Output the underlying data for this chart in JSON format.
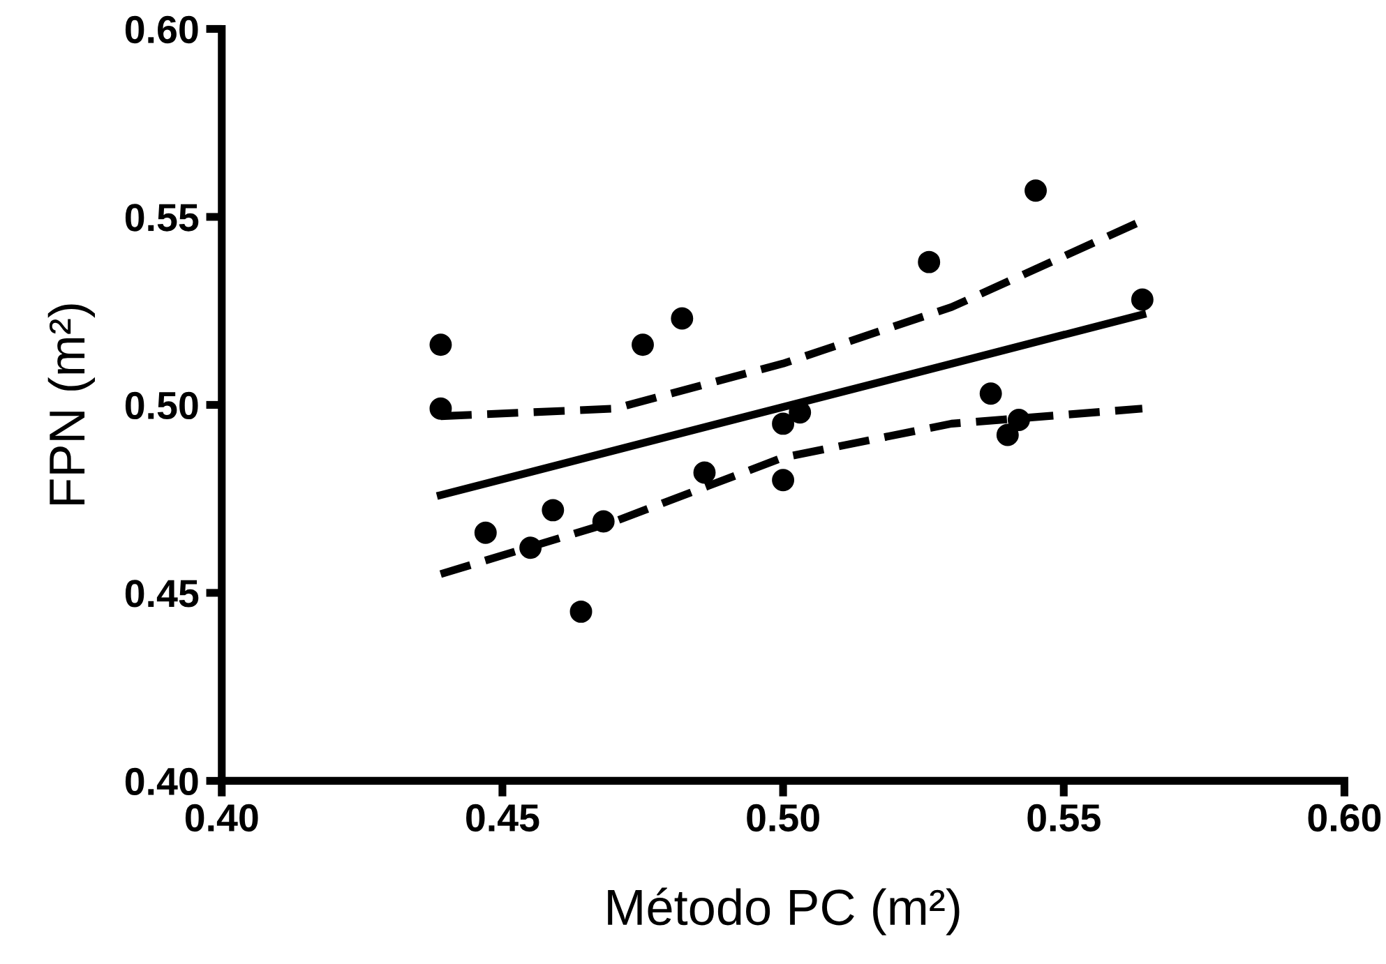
{
  "chart_data": {
    "type": "scatter",
    "xlabel": "Método PC (m²)",
    "ylabel": "FPN (m²)",
    "xlim": [
      0.4,
      0.6
    ],
    "ylim": [
      0.4,
      0.6
    ],
    "xticks": [
      {
        "value": 0.4,
        "label": "0.40"
      },
      {
        "value": 0.45,
        "label": "0.45"
      },
      {
        "value": 0.5,
        "label": "0.50"
      },
      {
        "value": 0.55,
        "label": "0.55"
      },
      {
        "value": 0.6,
        "label": "0.60"
      }
    ],
    "yticks": [
      {
        "value": 0.4,
        "label": "0.40"
      },
      {
        "value": 0.45,
        "label": "0.45"
      },
      {
        "value": 0.5,
        "label": "0.50"
      },
      {
        "value": 0.55,
        "label": "0.55"
      },
      {
        "value": 0.6,
        "label": "0.60"
      }
    ],
    "grid": false,
    "legend": false,
    "series": [
      {
        "color": "#000000",
        "marker": "circle",
        "x": [
          0.439,
          0.439,
          0.447,
          0.455,
          0.459,
          0.464,
          0.468,
          0.475,
          0.482,
          0.486,
          0.5,
          0.503,
          0.5,
          0.526,
          0.537,
          0.542,
          0.54,
          0.545,
          0.564
        ],
        "values": [
          0.516,
          0.499,
          0.466,
          0.462,
          0.472,
          0.445,
          0.469,
          0.516,
          0.523,
          0.482,
          0.495,
          0.498,
          0.48,
          0.538,
          0.503,
          0.496,
          0.492,
          0.557,
          0.528
        ]
      },
      {
        "type": "line",
        "color": "#000000",
        "line_style": "solid",
        "x": [
          0.439,
          0.564
        ],
        "values": [
          0.476,
          0.524
        ]
      },
      {
        "type": "line",
        "color": "#000000",
        "line_style": "dashed",
        "x": [
          0.439,
          0.47,
          0.5,
          0.53,
          0.564
        ],
        "values": [
          0.497,
          0.499,
          0.511,
          0.526,
          0.549
        ]
      },
      {
        "type": "line",
        "color": "#000000",
        "line_style": "dashed",
        "x": [
          0.439,
          0.47,
          0.5,
          0.53,
          0.564
        ],
        "values": [
          0.455,
          0.469,
          0.486,
          0.495,
          0.499
        ]
      }
    ]
  }
}
